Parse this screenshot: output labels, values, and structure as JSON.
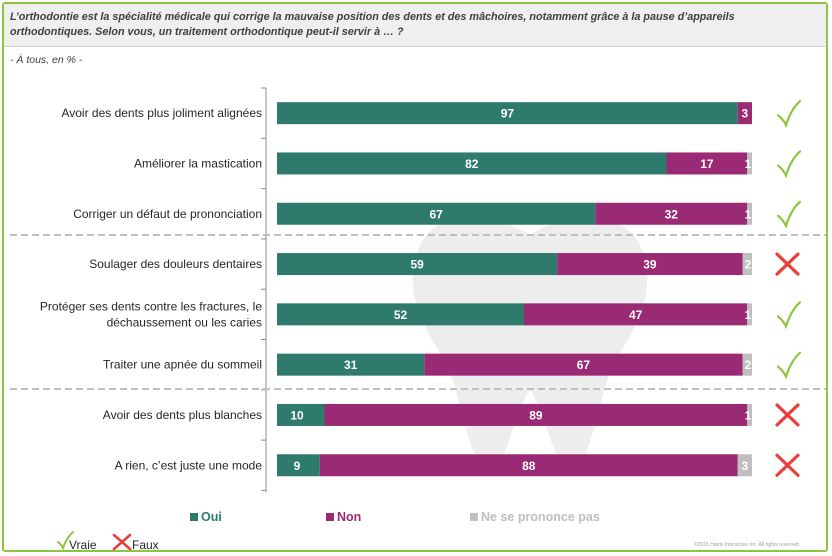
{
  "question": "L’orthodontie est la spécialité médicale qui corrige la mauvaise position des dents et des mâchoires, notamment grâce à la pause d’appareils orthodontiques. Selon vous, un traitement orthodontique peut-il servir à … ?",
  "base": "- À tous, en % -",
  "copyright": "©2015 Harris Interactive Inc. All rights reserved.",
  "colors": {
    "oui": "#2e7b6e",
    "non": "#9a2a73",
    "nsp": "#bfbfbf",
    "check": "#8cc63f",
    "cross": "#e8403a",
    "frame": "#8cc63f"
  },
  "verdict_key": [
    {
      "icon": "check-icon",
      "label": "Vraie"
    },
    {
      "icon": "cross-icon",
      "label": "Faux"
    }
  ],
  "chart_data": {
    "type": "bar",
    "orientation": "horizontal",
    "stacked": true,
    "xlim": [
      0,
      100
    ],
    "categories": [
      [
        "Avoir des dents plus joliment alignées"
      ],
      [
        "Améliorer la mastication"
      ],
      [
        "Corriger un défaut de prononciation"
      ],
      [
        "Soulager des douleurs dentaires"
      ],
      [
        "Protéger ses dents contre les fractures, le",
        "déchaussement ou les caries"
      ],
      [
        "Traiter une apnée du sommeil"
      ],
      [
        "Avoir des dents plus blanches"
      ],
      [
        "A rien, c’est juste une mode"
      ]
    ],
    "series": [
      {
        "name": "Oui",
        "values": [
          97,
          82,
          67,
          59,
          52,
          31,
          10,
          9
        ]
      },
      {
        "name": "Non",
        "values": [
          3,
          17,
          32,
          39,
          47,
          67,
          89,
          88
        ]
      },
      {
        "name": "Ne se prononce pas",
        "values": [
          0,
          1,
          1,
          2,
          1,
          2,
          1,
          3
        ]
      }
    ],
    "verdicts": [
      "Vraie",
      "Vraie",
      "Vraie",
      "Faux",
      "Vraie",
      "Vraie",
      "Faux",
      "Faux"
    ],
    "legend_position": "bottom"
  }
}
